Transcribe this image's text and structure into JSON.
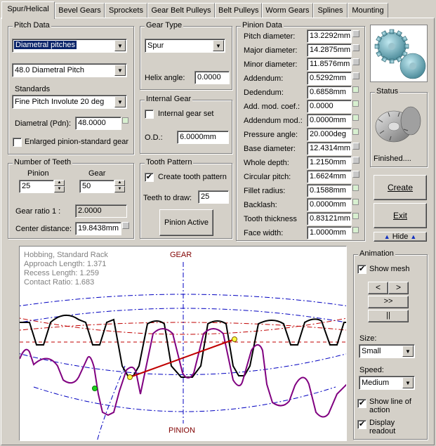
{
  "tabs": [
    {
      "label": "Spur/Helical",
      "active": true
    },
    {
      "label": "Bevel Gears"
    },
    {
      "label": "Sprockets"
    },
    {
      "label": "Gear Belt Pulleys"
    },
    {
      "label": "Belt Pulleys"
    },
    {
      "label": "Worm Gears"
    },
    {
      "label": "Splines"
    },
    {
      "label": "Mounting"
    }
  ],
  "pitch_data": {
    "title": "Pitch Data",
    "pitch_type": "Diametral pitches",
    "pitch_value": "48.0 Diametral Pitch",
    "standards_label": "Standards",
    "standard": "Fine Pitch Involute 20 deg",
    "diametral_label": "Diametral (Pdn):",
    "diametral_value": "48.0000",
    "enlarged_label": "Enlarged pinion-standard gear"
  },
  "gear_type": {
    "title": "Gear Type",
    "type": "Spur",
    "helix_label": "Helix angle:",
    "helix_value": "0.0000"
  },
  "internal_gear": {
    "title": "Internal Gear",
    "set_label": "Internal gear set",
    "od_label": "O.D.:",
    "od_value": "6.0000mm"
  },
  "teeth": {
    "title": "Number of Teeth",
    "pinion_label": "Pinion",
    "gear_label": "Gear",
    "pinion_value": "25",
    "gear_value": "50",
    "ratio_label": "Gear ratio 1 :",
    "ratio_value": "2.0000",
    "center_label": "Center distance:",
    "center_value": "19.8438mm"
  },
  "tooth_pattern": {
    "title": "Tooth Pattern",
    "create_label": "Create tooth pattern",
    "create_checked": "✔",
    "draw_label": "Teeth to draw:",
    "draw_value": "25",
    "button_label": "Pinion Active"
  },
  "pinion_data": {
    "title": "Pinion Data",
    "rows": [
      {
        "label": "Pitch diameter:",
        "value": "13.2292mm"
      },
      {
        "label": "Major diameter:",
        "value": "14.2875mm"
      },
      {
        "label": "Minor diameter:",
        "value": "11.8576mm"
      },
      {
        "label": "Addendum:",
        "value": "0.5292mm"
      },
      {
        "label": "Dedendum:",
        "value": "0.6858mm"
      },
      {
        "label": "Add. mod. coef.:",
        "value": "0.0000"
      },
      {
        "label": "Addendum mod.:",
        "value": "0.0000mm"
      },
      {
        "label": "Pressure angle:",
        "value": "20.000deg"
      },
      {
        "label": "Base diameter:",
        "value": "12.4314mm"
      },
      {
        "label": "Whole depth:",
        "value": "1.2150mm"
      },
      {
        "label": "Circular pitch:",
        "value": "1.6624mm"
      },
      {
        "label": "Fillet radius:",
        "value": "0.1588mm"
      },
      {
        "label": "Backlash:",
        "value": "0.0000mm"
      },
      {
        "label": "Tooth thickness",
        "value": "0.83121mm"
      },
      {
        "label": "Face width:",
        "value": "1.0000mm"
      }
    ]
  },
  "status": {
    "title": "Status",
    "text": "Finished...."
  },
  "actions": {
    "create_label": "Create",
    "exit_label": "Exit",
    "hide_label": "Hide"
  },
  "canvas": {
    "info_lines": [
      "Hobbing, Standard Rack",
      "Approach Length: 1.371",
      "Recess Length: 1.259",
      "Contact Ratio: 1.683"
    ],
    "gear_label": "GEAR",
    "pinion_label": "PINION"
  },
  "animation": {
    "title": "Animation",
    "show_mesh_label": "Show mesh",
    "show_mesh_checked": "✔",
    "prev_label": "<",
    "next_label": ">",
    "fast_label": ">>",
    "pause_label": "||",
    "size_label": "Size:",
    "size_value": "Small",
    "speed_label": "Speed:",
    "speed_value": "Medium",
    "line_of_action_label": "Show line of action",
    "readout_label": "Display readout",
    "checked_mark": "✔"
  },
  "colors": {
    "face": "#d4d0c8",
    "selection": "#0a246a",
    "gear_label": "#800000",
    "pinion_profile": "#800080",
    "action_line": "#c00000"
  }
}
